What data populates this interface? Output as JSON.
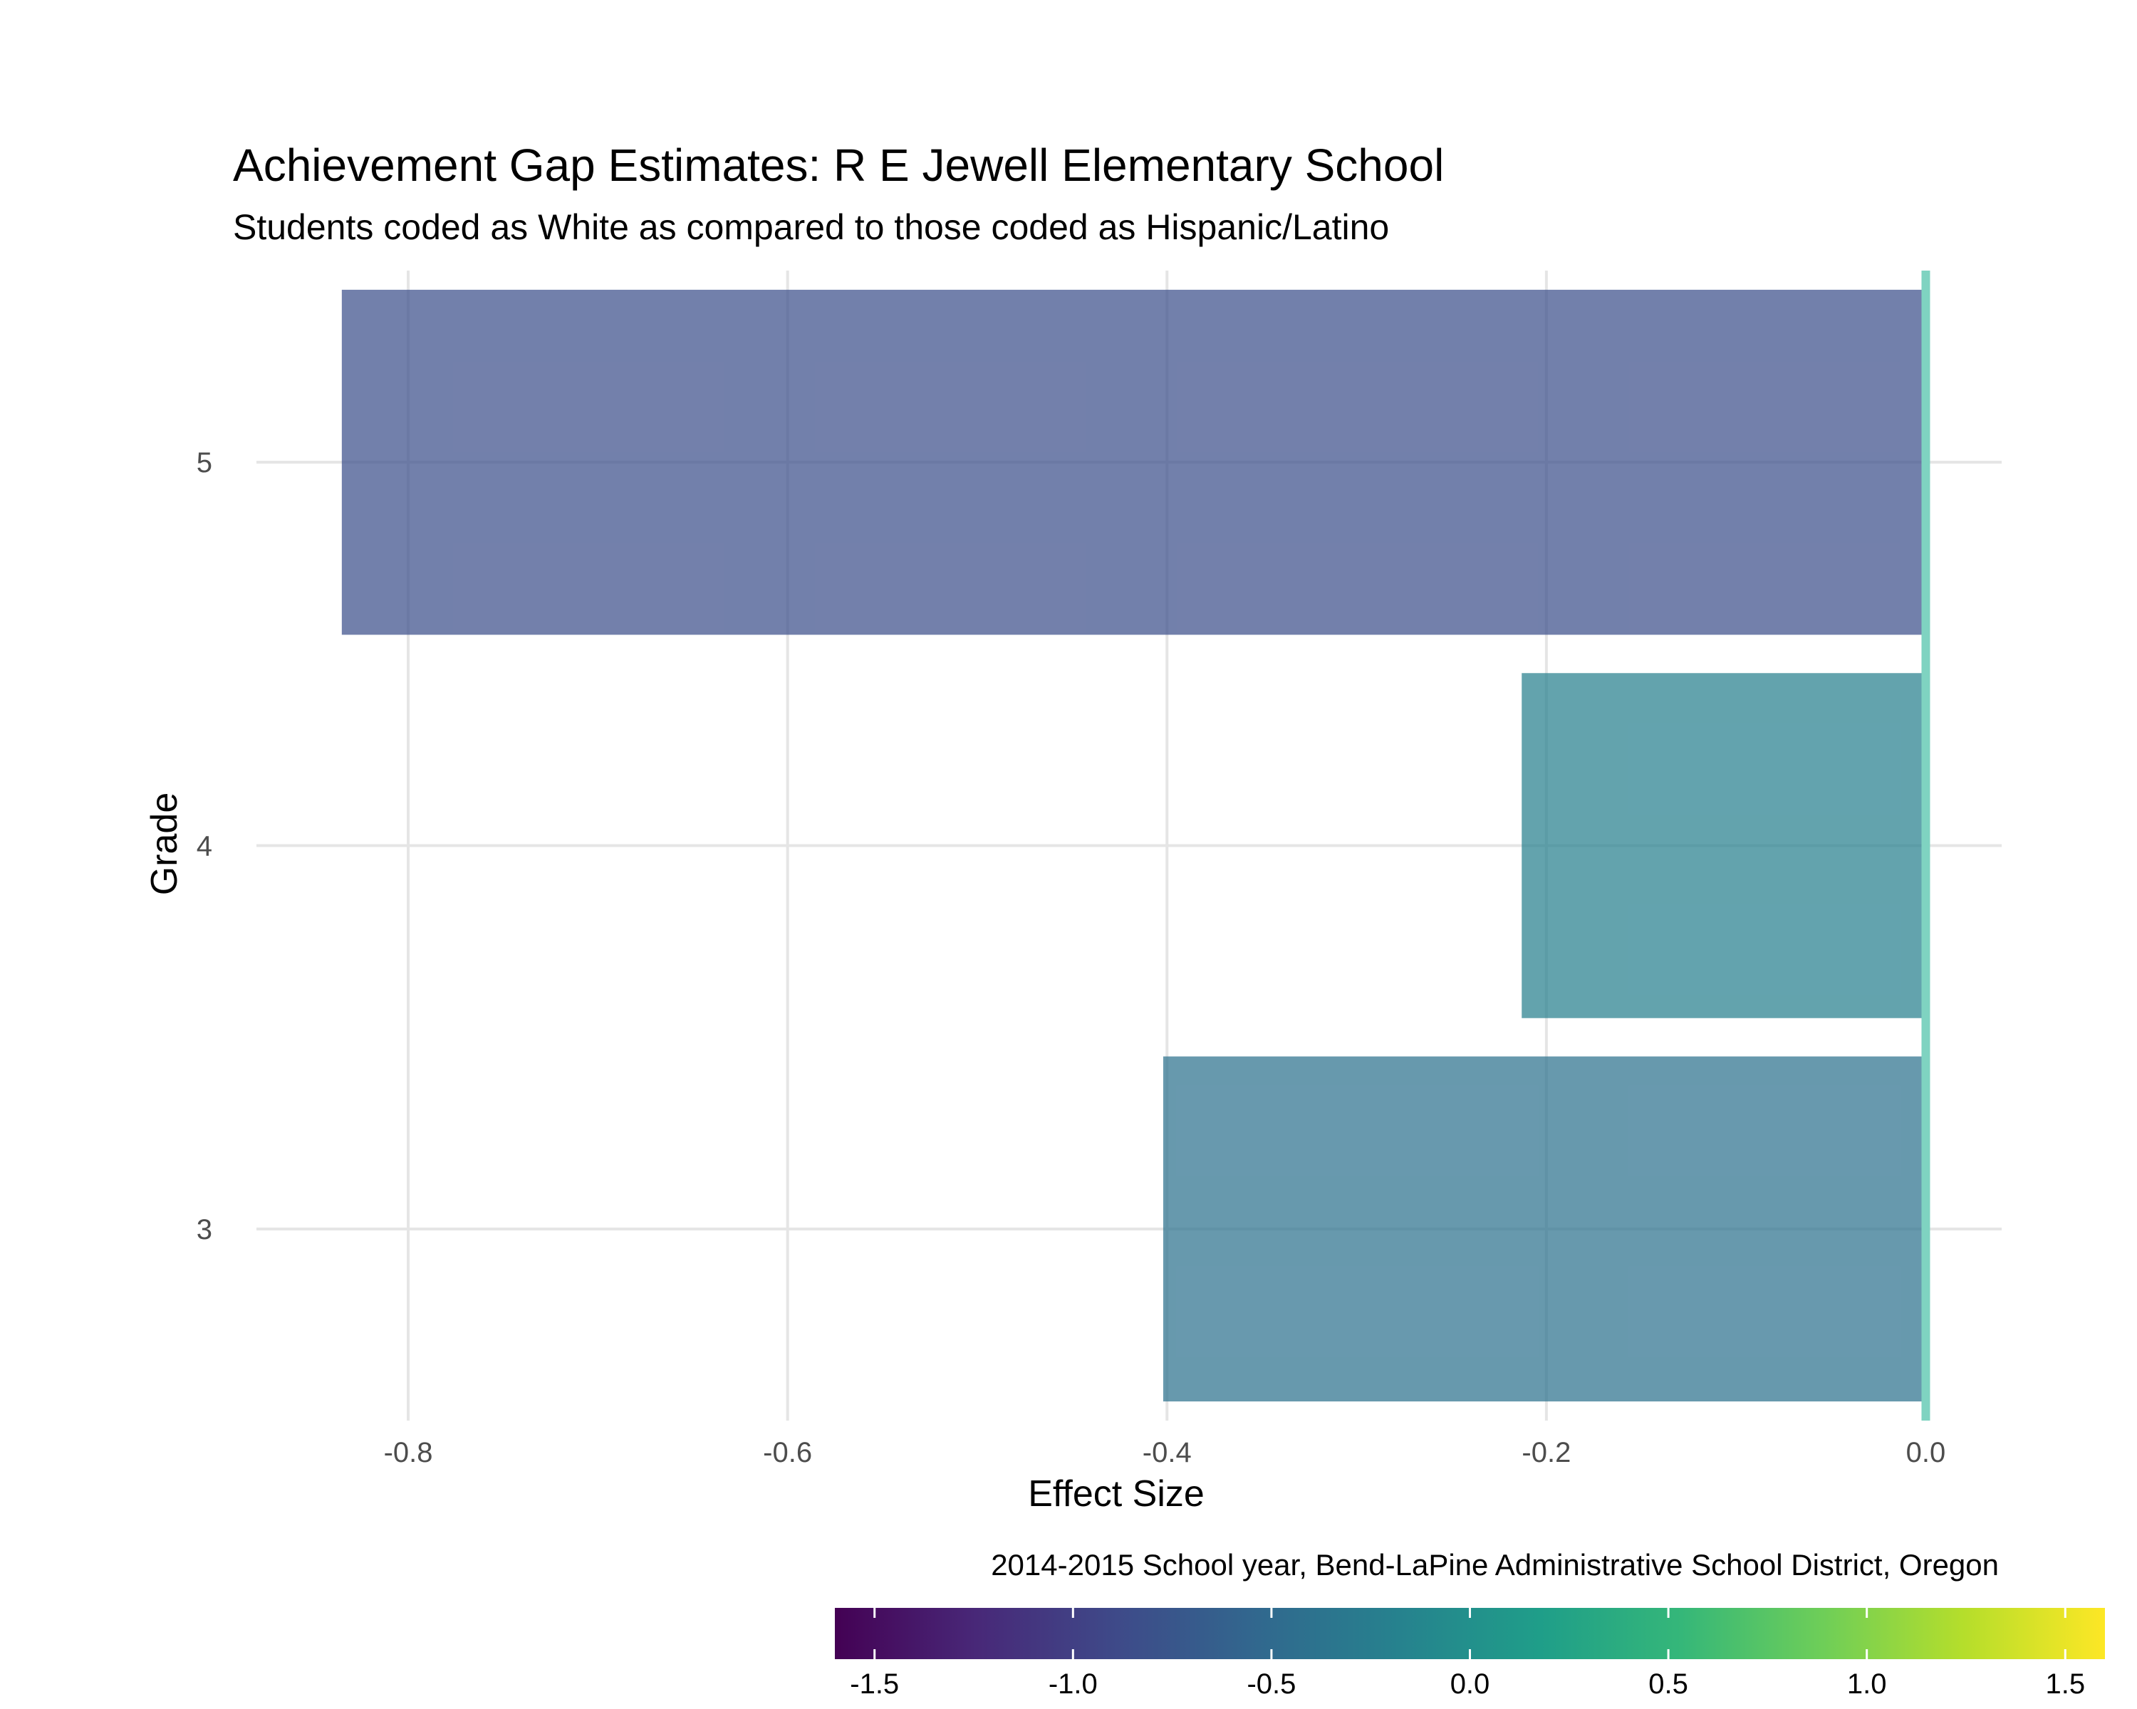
{
  "chart_data": {
    "type": "bar",
    "orientation": "horizontal",
    "title": "Achievement Gap Estimates: R E Jewell Elementary School",
    "subtitle": "Students coded as White as compared to those coded as Hispanic/Latino",
    "xlabel": "Effect Size",
    "ylabel": "Grade",
    "caption": "2014-2015 School year, Bend-LaPine Administrative School District, Oregon",
    "categories": [
      "3",
      "4",
      "5"
    ],
    "values": [
      -0.402,
      -0.213,
      -0.835
    ],
    "xlim": [
      -0.88,
      0.04
    ],
    "x_ticks": [
      -0.8,
      -0.6,
      -0.4,
      -0.2,
      0.0
    ],
    "x_tick_labels": [
      "-0.8",
      "-0.6",
      "-0.4",
      "-0.2",
      "0.0"
    ],
    "reference_line": 0.0,
    "grid": true,
    "legend": {
      "type": "colorbar",
      "placement": "bottom",
      "range": [
        -1.6,
        1.6
      ],
      "ticks": [
        -1.5,
        -1.0,
        -0.5,
        0.0,
        0.5,
        1.0,
        1.5
      ],
      "tick_labels": [
        "-1.5",
        "-1.0",
        "-0.5",
        "0.0",
        "0.5",
        "1.0",
        "1.5"
      ]
    },
    "colors": {
      "reference_line": "#7fd3c1",
      "grid": "#e5e5e5",
      "palette": "viridis"
    }
  }
}
